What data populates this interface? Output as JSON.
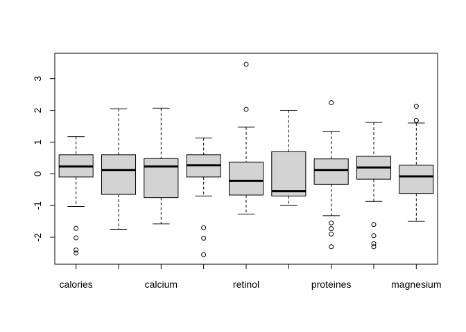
{
  "chart_data": {
    "type": "boxplot",
    "title": "",
    "xlabel": "",
    "ylabel": "",
    "ylim": [
      -2.85,
      3.8
    ],
    "yticks": [
      -2,
      -1,
      0,
      1,
      2,
      3
    ],
    "ytick_labels": [
      "-2",
      "-1",
      "0",
      "1",
      "2",
      "3"
    ],
    "categories": [
      "calories",
      "",
      "calcium",
      "",
      "retinol",
      "",
      "proteines",
      "",
      "magnesium"
    ],
    "box_fill": "#d3d3d3",
    "boxes": [
      {
        "q1": -0.1,
        "median": 0.23,
        "q3": 0.6,
        "lower": -1.03,
        "upper": 1.17,
        "outliers": [
          -1.72,
          -2.02,
          -2.4,
          -2.5
        ]
      },
      {
        "q1": -0.65,
        "median": 0.12,
        "q3": 0.6,
        "lower": -1.75,
        "upper": 2.05,
        "outliers": []
      },
      {
        "q1": -0.75,
        "median": 0.23,
        "q3": 0.48,
        "lower": -1.58,
        "upper": 2.07,
        "outliers": []
      },
      {
        "q1": -0.1,
        "median": 0.27,
        "q3": 0.6,
        "lower": -0.7,
        "upper": 1.13,
        "outliers": [
          -1.7,
          -2.03,
          -2.55
        ]
      },
      {
        "q1": -0.67,
        "median": -0.22,
        "q3": 0.37,
        "lower": -1.27,
        "upper": 1.47,
        "outliers": [
          3.45,
          2.03
        ]
      },
      {
        "q1": -0.7,
        "median": -0.55,
        "q3": 0.7,
        "lower": -1.0,
        "upper": 2.0,
        "outliers": []
      },
      {
        "q1": -0.33,
        "median": 0.12,
        "q3": 0.47,
        "lower": -1.32,
        "upper": 1.33,
        "outliers": [
          2.24,
          -1.55,
          -1.73,
          -1.9,
          -2.3
        ]
      },
      {
        "q1": -0.17,
        "median": 0.2,
        "q3": 0.55,
        "lower": -0.87,
        "upper": 1.62,
        "outliers": [
          -1.6,
          -1.95,
          -2.2,
          -2.3
        ]
      },
      {
        "q1": -0.62,
        "median": -0.08,
        "q3": 0.27,
        "lower": -1.5,
        "upper": 1.6,
        "outliers": [
          2.13,
          1.68
        ]
      }
    ]
  }
}
